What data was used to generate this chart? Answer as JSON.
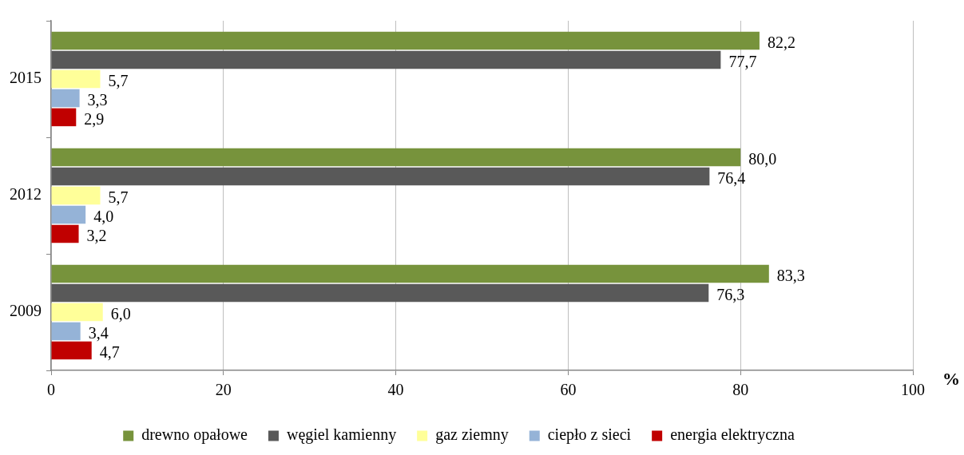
{
  "chart_data": {
    "type": "bar",
    "orientation": "horizontal",
    "categories": [
      "2015",
      "2012",
      "2009"
    ],
    "series": [
      {
        "name": "drewno opałowe",
        "color": "#77933c",
        "values": [
          82.2,
          80.0,
          83.3
        ],
        "value_labels": [
          "82,2",
          "80,0",
          "83,3"
        ]
      },
      {
        "name": "węgiel kamienny",
        "color": "#595959",
        "values": [
          77.7,
          76.4,
          76.3
        ],
        "value_labels": [
          "77,7",
          "76,4",
          "76,3"
        ]
      },
      {
        "name": "gaz ziemny",
        "color": "#ffff99",
        "values": [
          5.7,
          5.7,
          6.0
        ],
        "value_labels": [
          "5,7",
          "5,7",
          "6,0"
        ]
      },
      {
        "name": "ciepło z sieci",
        "color": "#95b3d7",
        "values": [
          3.3,
          4.0,
          3.4
        ],
        "value_labels": [
          "3,3",
          "4,0",
          "3,4"
        ]
      },
      {
        "name": "energia elektryczna",
        "color": "#c00000",
        "values": [
          2.9,
          3.2,
          4.7
        ],
        "value_labels": [
          "2,9",
          "3,2",
          "4,7"
        ]
      }
    ],
    "xlabel": "%",
    "xlim": [
      0,
      100
    ],
    "xticks": [
      0,
      20,
      40,
      60,
      80,
      100
    ],
    "grid": "x",
    "legend": "bottom"
  }
}
